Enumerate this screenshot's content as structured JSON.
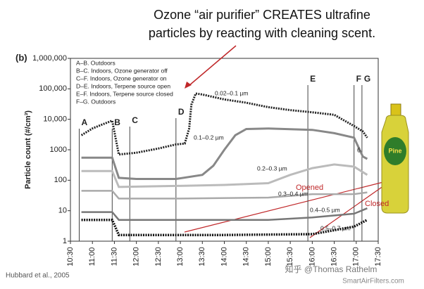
{
  "chart_data": {
    "type": "line",
    "title_lines": [
      "Ozone “air purifier” CREATES ultrafine",
      "particles by reacting with cleaning scent."
    ],
    "panel_label": "(b)",
    "ylabel": "Particle count (#/cm³)",
    "log": true,
    "xlim": [
      10.5,
      17.5
    ],
    "xticks": [
      {
        "value": 10.5,
        "label": "10:30"
      },
      {
        "value": 11,
        "label": "11:00"
      },
      {
        "value": 11.5,
        "label": "11:30"
      },
      {
        "value": 12,
        "label": "12:00"
      },
      {
        "value": 12.5,
        "label": "12:30"
      },
      {
        "value": 13,
        "label": "13:00"
      },
      {
        "value": 13.5,
        "label": "13:30"
      },
      {
        "value": 14,
        "label": "14:00"
      },
      {
        "value": 14.5,
        "label": "14:30"
      },
      {
        "value": 15,
        "label": "15:00"
      },
      {
        "value": 15.5,
        "label": "15:30"
      },
      {
        "value": 16,
        "label": "16:00"
      },
      {
        "value": 16.5,
        "label": "16:30"
      },
      {
        "value": 17,
        "label": "17:00"
      },
      {
        "value": 17.5,
        "label": "17:30"
      }
    ],
    "ylim": [
      1,
      1000000
    ],
    "yticks": [
      1,
      10,
      100,
      1000,
      {
        "value": 10000,
        "label": "10,000"
      },
      {
        "value": 100000,
        "label": "100,000"
      },
      {
        "value": 1000000,
        "label": "1,000,000"
      }
    ],
    "legend_notes": [
      "A–B. Outdoors",
      "B–C. Indoors, Ozone generator off",
      "C–F. Indoors, Ozone generator on",
      "D–E. Indoors, Terpene source open",
      "E–F. Indoors, Terpene source closed",
      "F–G. Outdoors"
    ],
    "events": [
      {
        "label": "A",
        "x": 10.7
      },
      {
        "label": "B",
        "x": 11.45
      },
      {
        "label": "C",
        "x": 11.85
      },
      {
        "label": "D",
        "x": 12.9
      },
      {
        "label": "E",
        "x": 15.9
      },
      {
        "label": "F",
        "x": 16.95
      },
      {
        "label": "G",
        "x": 17.13
      }
    ],
    "series": [
      {
        "name": "0.02–0.1 µm",
        "color": "#222222",
        "x": [
          10.75,
          11,
          11.25,
          11.45,
          11.6,
          12,
          12.5,
          12.9,
          13.1,
          13.2,
          13.25,
          13.35,
          13.5,
          14,
          14.5,
          15,
          15.5,
          16,
          16.5,
          16.95,
          17.15,
          17.25
        ],
        "values": [
          3000,
          5000,
          7000,
          9000,
          700,
          800,
          1100,
          1500,
          1600,
          5000,
          30000,
          70000,
          65000,
          45000,
          35000,
          25000,
          20000,
          17000,
          14000,
          6000,
          4000,
          2500
        ]
      },
      {
        "name": "0.1–0.2 µm",
        "color": "#888888",
        "x": [
          10.75,
          11.45,
          11.6,
          12,
          12.9,
          13.5,
          13.75,
          14,
          14.25,
          14.5,
          15,
          16,
          16.5,
          16.95,
          17.15,
          17.25
        ],
        "values": [
          550,
          550,
          120,
          110,
          110,
          150,
          300,
          1000,
          3000,
          4800,
          5000,
          4500,
          3500,
          2500,
          600,
          500
        ]
      },
      {
        "name": "0.2–0.3 µm",
        "color": "#bbbbbb",
        "x": [
          10.75,
          11.45,
          11.6,
          12.9,
          14,
          15,
          15.5,
          16,
          16.5,
          16.95,
          17.25
        ],
        "values": [
          200,
          200,
          60,
          65,
          70,
          80,
          150,
          250,
          330,
          280,
          150
        ]
      },
      {
        "name": "0.3–0.4 µm",
        "color": "#aaaaaa",
        "x": [
          10.75,
          11.45,
          11.6,
          12.9,
          15,
          16,
          16.95,
          17.25
        ],
        "values": [
          45,
          45,
          25,
          25,
          27,
          35,
          35,
          40
        ]
      },
      {
        "name": "0.4–0.5 µm",
        "color": "#777777",
        "x": [
          10.75,
          11.45,
          11.6,
          12.9,
          15,
          16,
          16.95,
          17.25
        ],
        "values": [
          9,
          9,
          5,
          5,
          5,
          6,
          8,
          12
        ]
      },
      {
        "name": "0.5–0.7 µm",
        "color": "#111111",
        "x": [
          10.75,
          11.45,
          11.6,
          12.9,
          14,
          16,
          16.95,
          17.25
        ],
        "values": [
          5,
          5,
          1.6,
          1.6,
          1.6,
          1.7,
          3,
          5
        ]
      }
    ],
    "annotations": [
      "Opened",
      "Closed",
      "6"
    ],
    "source": "Hubbard et al., 2005",
    "watermark": [
      "知乎 @Thomas Rathelm",
      "SmartAirFilters.com"
    ]
  }
}
